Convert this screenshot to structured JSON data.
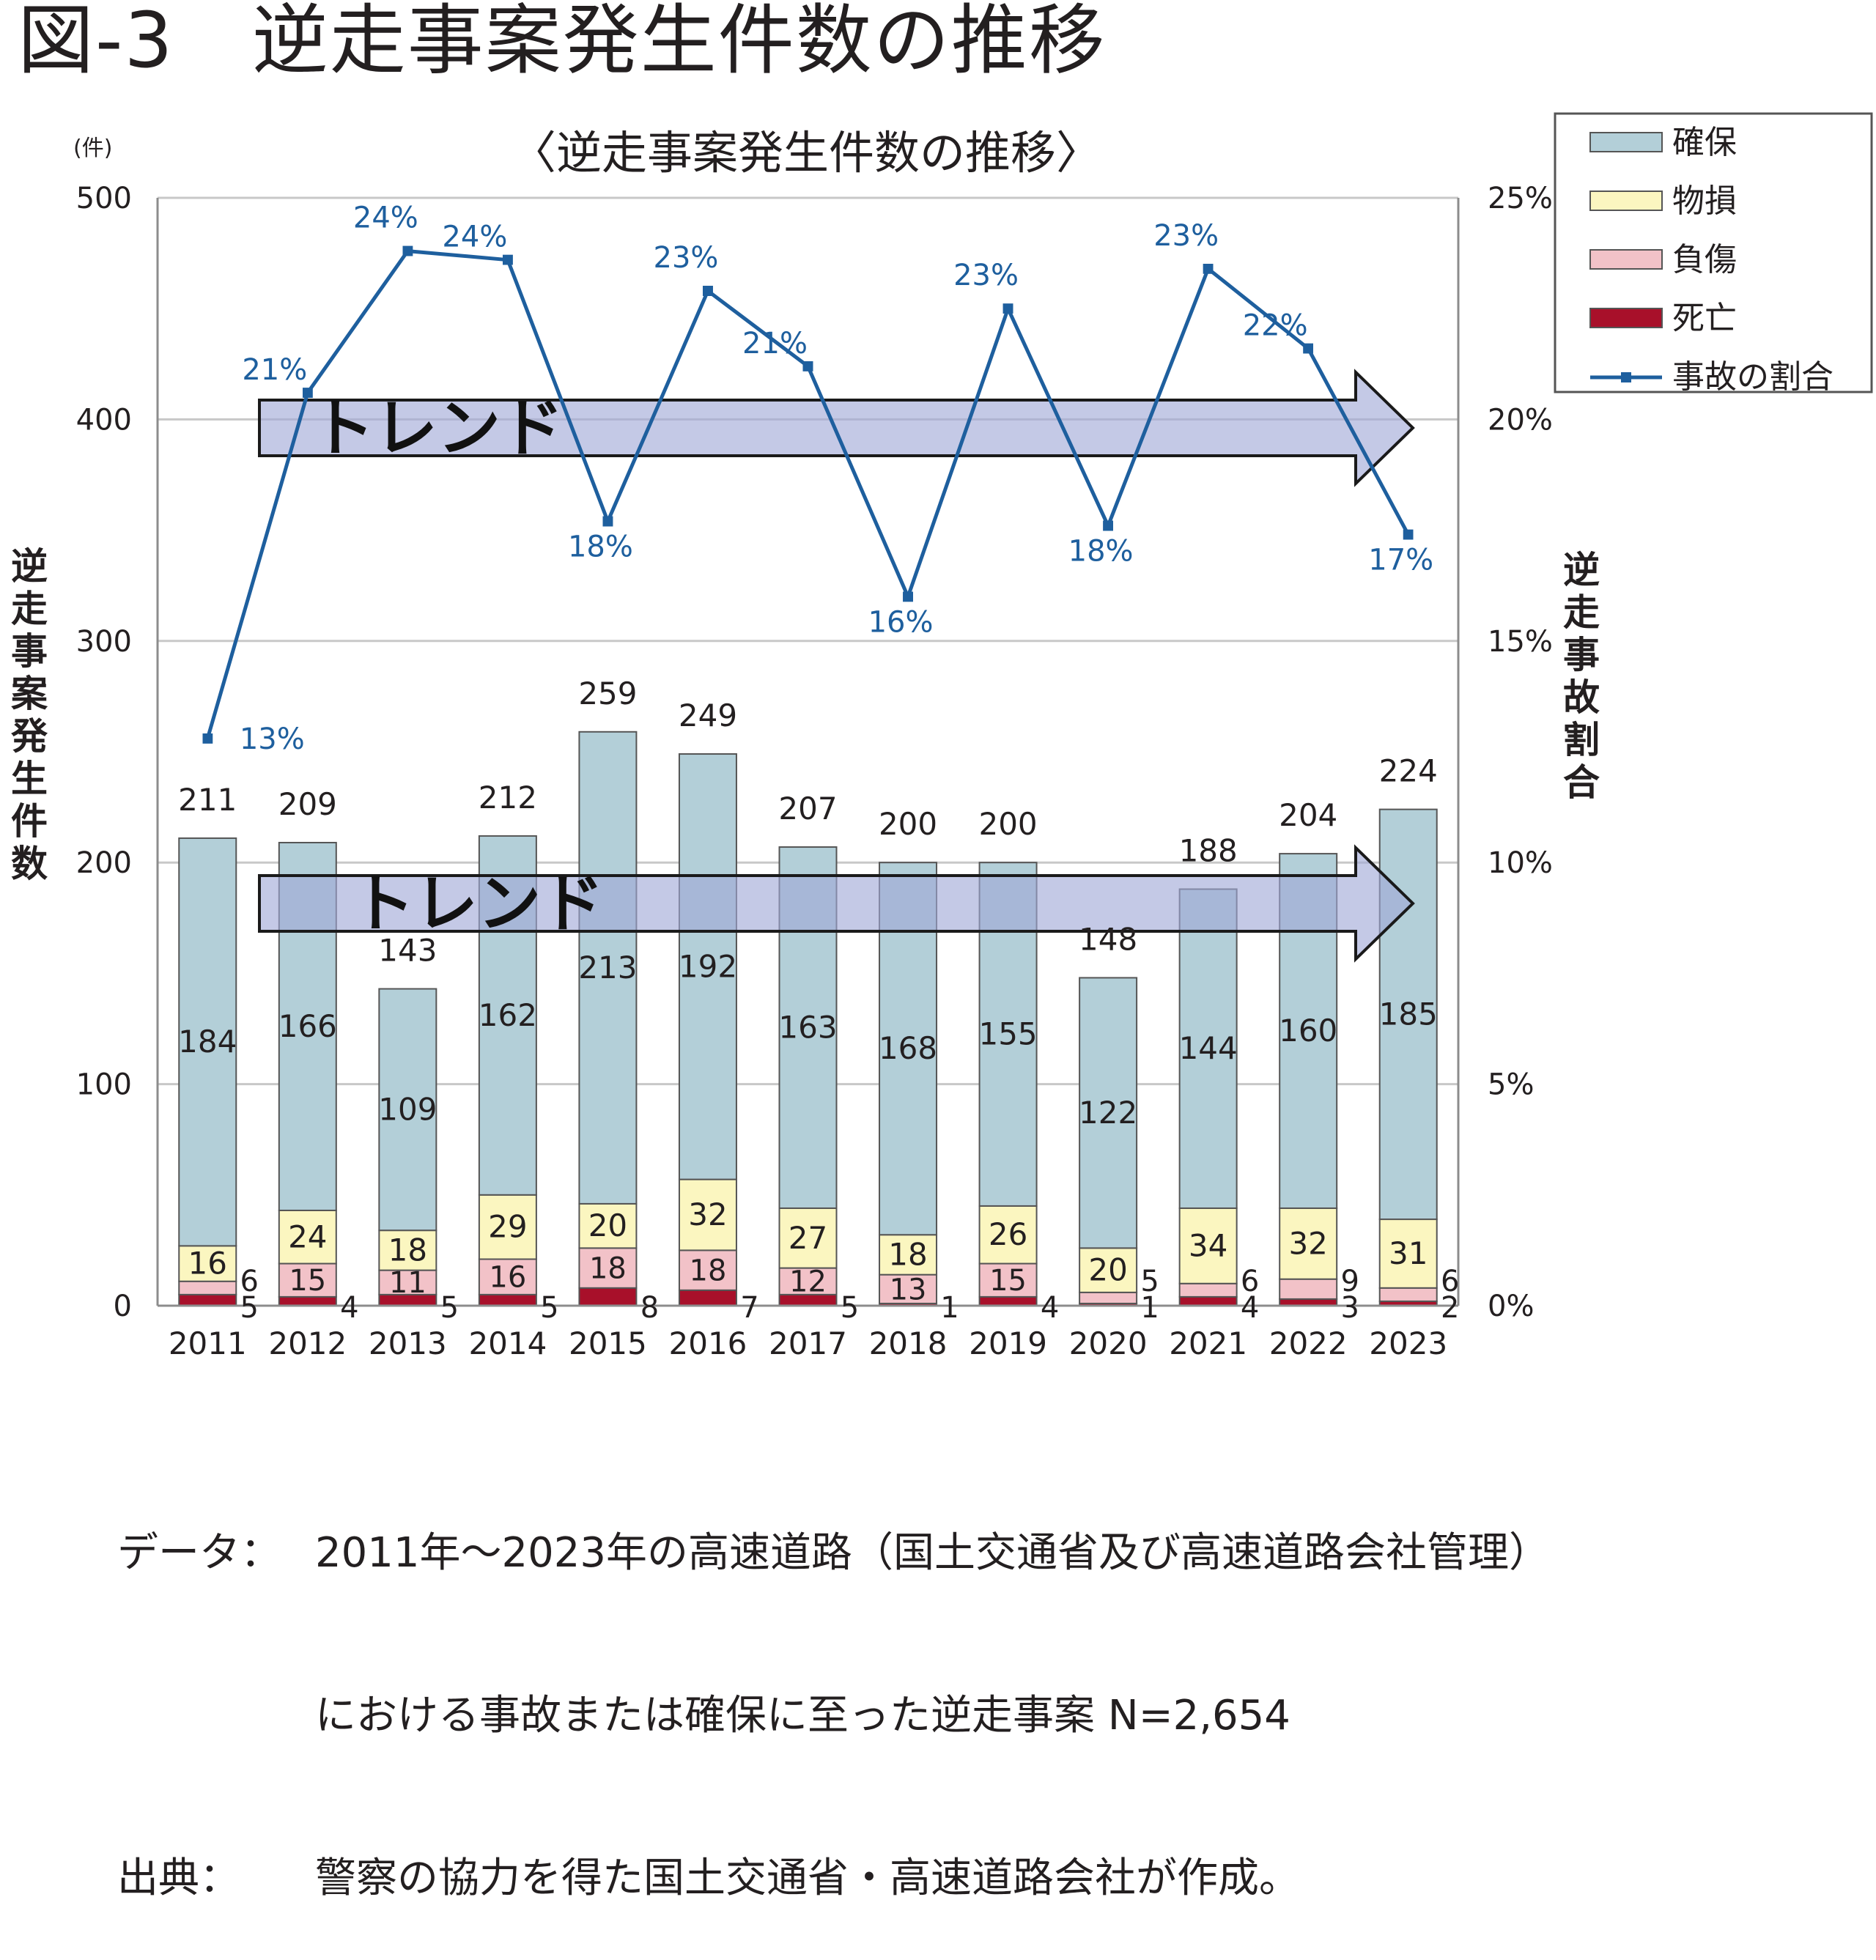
{
  "figure_title": "図-3　逆走事案発生件数の推移",
  "chart_data": {
    "type": "bar",
    "title": "〈逆走事案発生件数の推移〉",
    "y_unit": "(件)",
    "ylabel": "逆走事案発生件数",
    "y2label": "逆走事故割合",
    "ylim": [
      0,
      500
    ],
    "yticks": [
      "0",
      "100",
      "200",
      "300",
      "400",
      "500"
    ],
    "y2lim": [
      0,
      25
    ],
    "y2ticks": [
      "0%",
      "5%",
      "10%",
      "15%",
      "20%",
      "25%"
    ],
    "categories": [
      "2011",
      "2012",
      "2013",
      "2014",
      "2015",
      "2016",
      "2017",
      "2018",
      "2019",
      "2020",
      "2021",
      "2022",
      "2023"
    ],
    "series": [
      {
        "name": "死亡",
        "color": "#a8102a",
        "values": [
          5,
          4,
          5,
          5,
          8,
          7,
          5,
          1,
          4,
          1,
          4,
          3,
          2
        ]
      },
      {
        "name": "負傷",
        "color": "#f2c2c8",
        "values": [
          6,
          15,
          11,
          16,
          18,
          18,
          12,
          13,
          15,
          5,
          6,
          9,
          6
        ]
      },
      {
        "name": "物損",
        "color": "#fbf6c0",
        "values": [
          16,
          24,
          18,
          29,
          20,
          32,
          27,
          18,
          26,
          20,
          34,
          32,
          31
        ]
      },
      {
        "name": "確保",
        "color": "#b3cfd8",
        "values": [
          184,
          166,
          109,
          162,
          213,
          192,
          163,
          168,
          155,
          122,
          144,
          160,
          185
        ]
      }
    ],
    "totals": [
      211,
      209,
      143,
      212,
      259,
      249,
      207,
      200,
      200,
      148,
      188,
      204,
      224
    ],
    "line": {
      "name": "事故の割合",
      "color": "#1e5f9e",
      "values": [
        12.8,
        20.6,
        23.8,
        23.6,
        17.7,
        22.9,
        21.2,
        16.0,
        22.5,
        17.6,
        23.4,
        21.6,
        17.4
      ],
      "labels": [
        "13%",
        "21%",
        "24%",
        "24%",
        "18%",
        "23%",
        "21%",
        "16%",
        "23%",
        "18%",
        "23%",
        "22%",
        "17%"
      ]
    },
    "legend_position": "top-right",
    "grid": true,
    "annotations": [
      "トレンド",
      "トレンド"
    ]
  },
  "notes": {
    "data_key": "データ：",
    "data_line1": "2011年～2023年の高速道路（国土交通省及び高速道路会社管理）",
    "data_line2": "における事故または確保に至った逆走事案 N=2,654",
    "source_key": "出典：",
    "source_text": "警察の協力を得た国土交通省・高速道路会社が作成。"
  }
}
